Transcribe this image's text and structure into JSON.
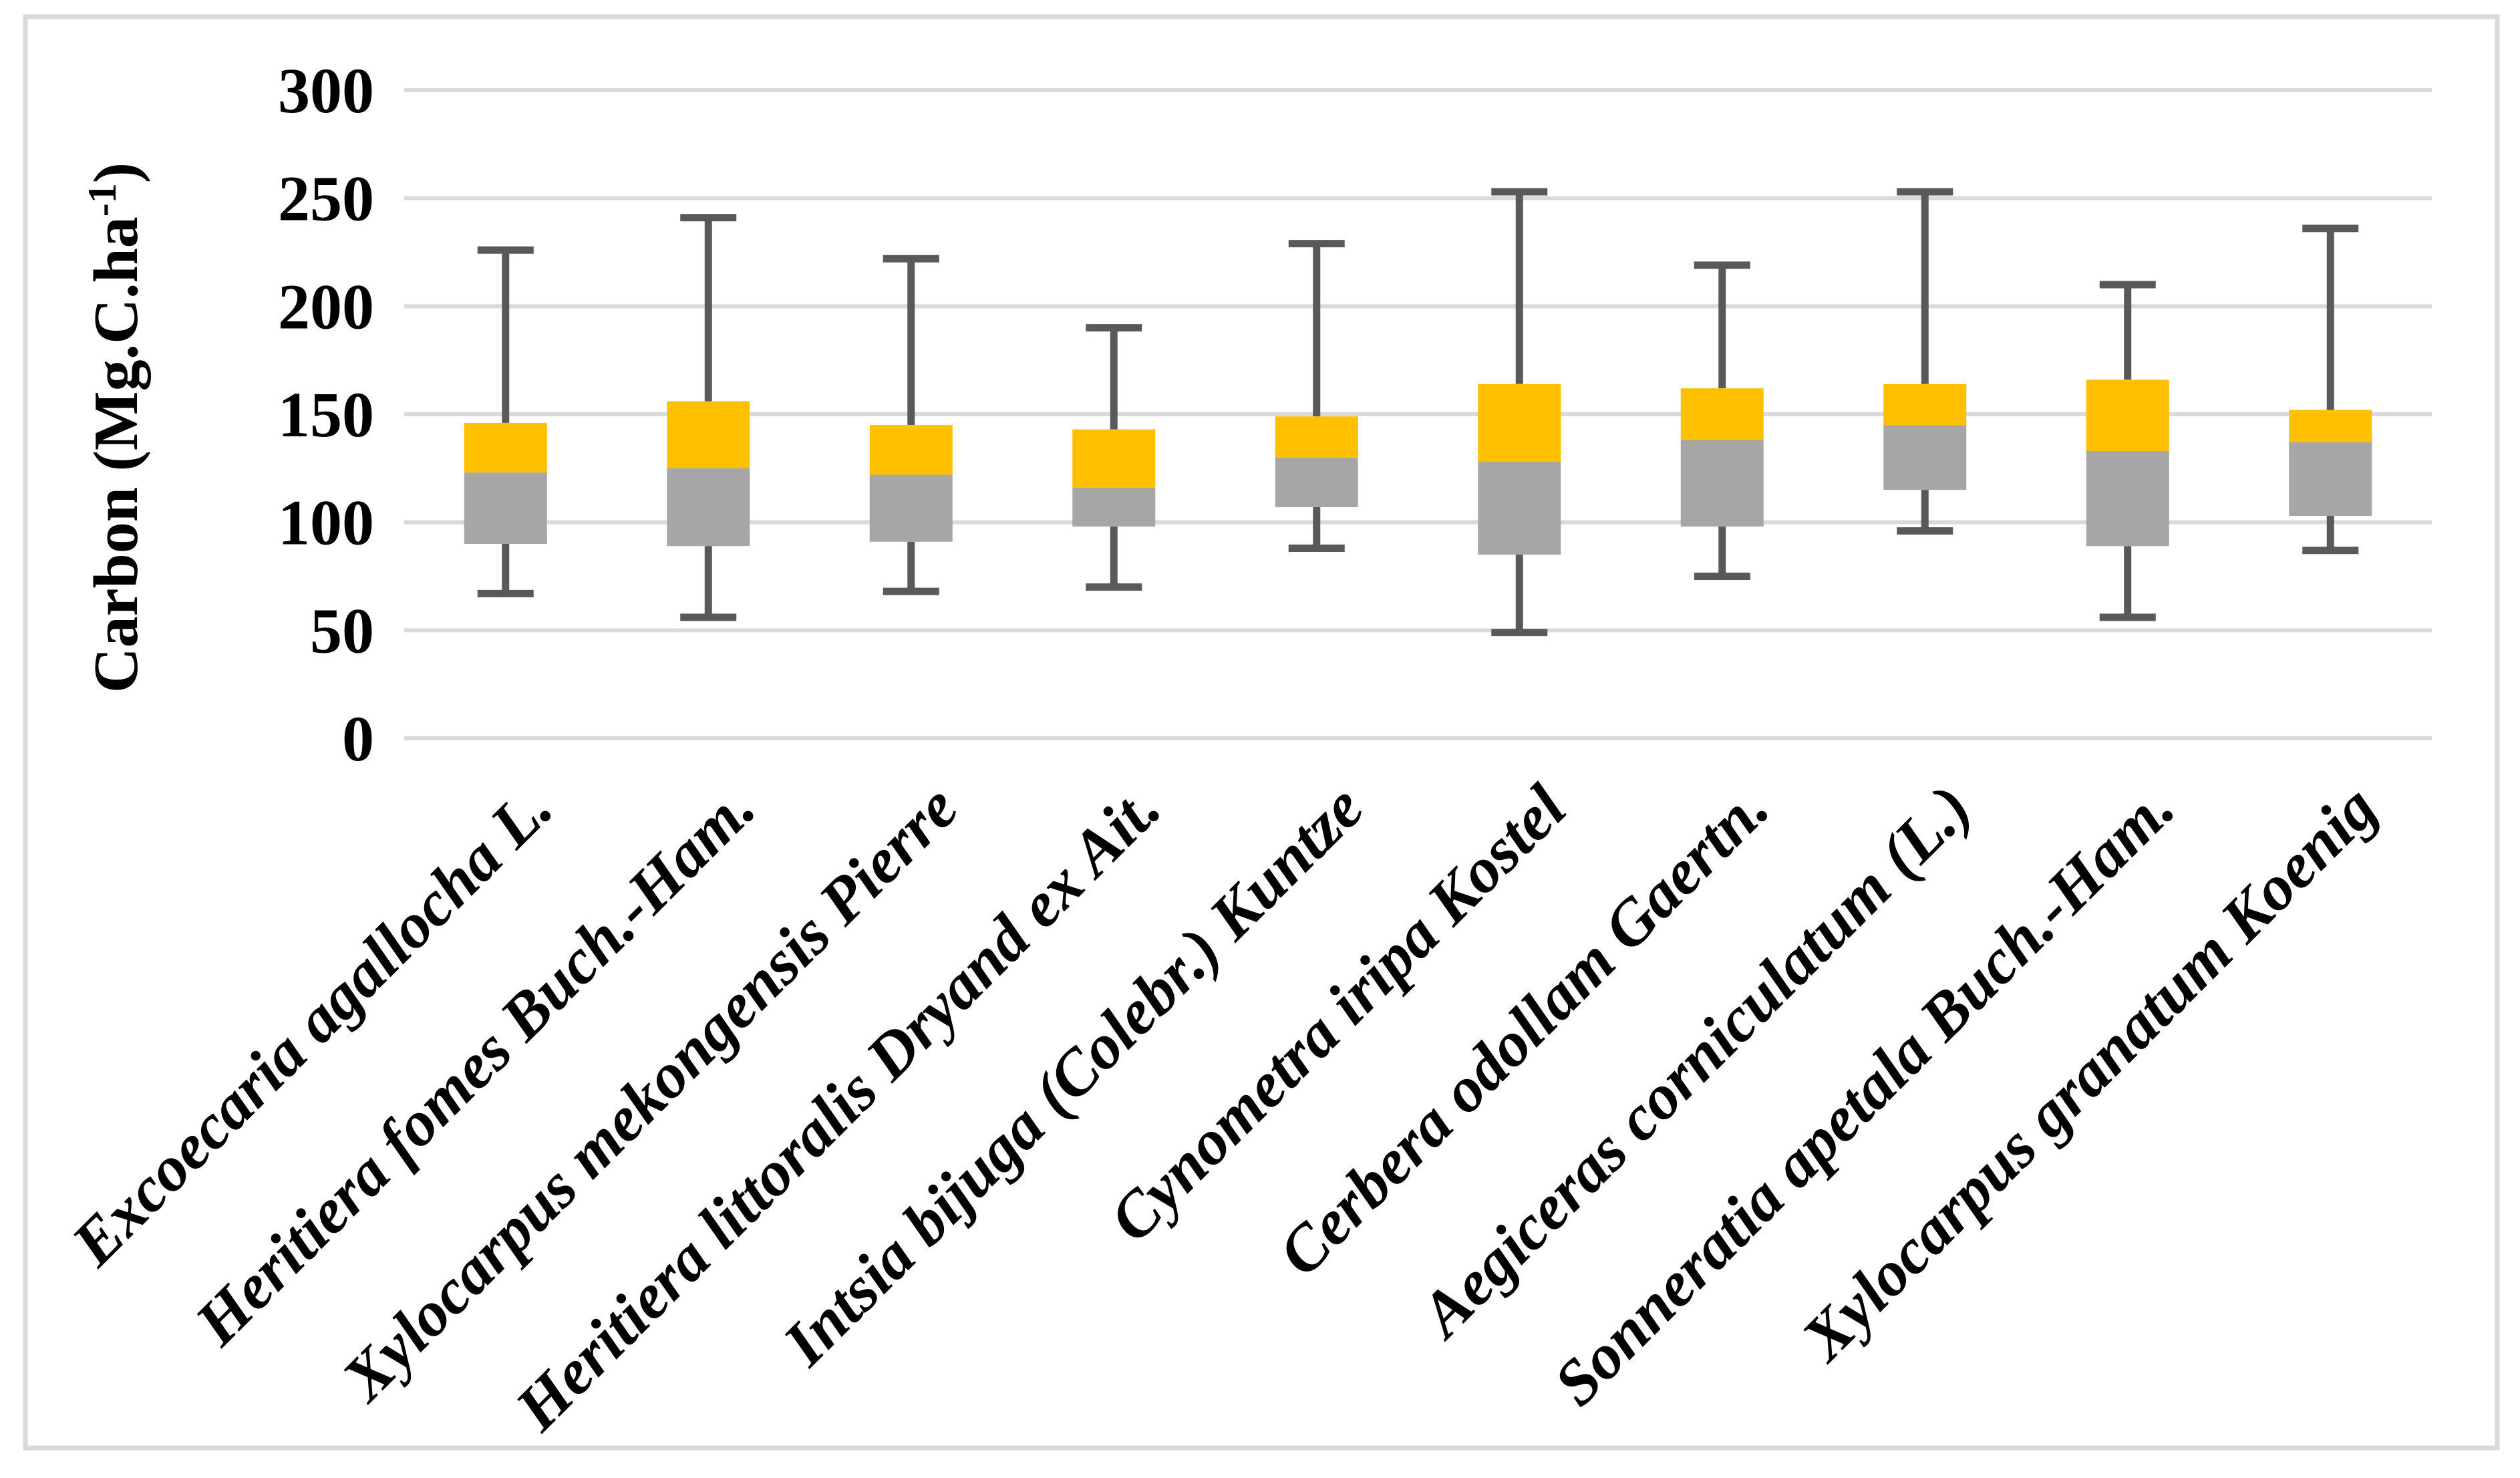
{
  "chart_data": {
    "type": "box",
    "title": "",
    "legend": "none",
    "grid": "horizontal",
    "y_axis": {
      "title_main": "Carbon (Mg.C.ha",
      "title_sup": "-1",
      "title_close": ")",
      "min": 0,
      "max": 300,
      "tick_step": 50,
      "ticks": [
        0,
        50,
        100,
        150,
        200,
        250,
        300
      ]
    },
    "categories": [
      "Excoecaria agallocha L.",
      "Heritiera fomes Buch.-Ham.",
      "Xylocarpus mekongensis Pierre",
      "Heritiera littoralis Dryand ex Ait.",
      "Intsia bijuga (Colebr.) Kuntze",
      "Cynometra iripa Kostel",
      "Cerbera odollam Gaertn.",
      "Aegiceras corniculatum (L.)",
      "Sonneratia apetala Buch.-Ham.",
      "Xylocarpus granatum Koenig"
    ],
    "boxes": [
      {
        "min": 67,
        "q1": 90,
        "median": 123,
        "q3": 146,
        "max": 226
      },
      {
        "min": 56,
        "q1": 89,
        "median": 125,
        "q3": 156,
        "max": 241
      },
      {
        "min": 68,
        "q1": 91,
        "median": 122,
        "q3": 145,
        "max": 222
      },
      {
        "min": 70,
        "q1": 98,
        "median": 116,
        "q3": 143,
        "max": 190
      },
      {
        "min": 88,
        "q1": 107,
        "median": 130,
        "q3": 149,
        "max": 229
      },
      {
        "min": 49,
        "q1": 85,
        "median": 128,
        "q3": 164,
        "max": 253
      },
      {
        "min": 75,
        "q1": 98,
        "median": 138,
        "q3": 162,
        "max": 219
      },
      {
        "min": 96,
        "q1": 115,
        "median": 145,
        "q3": 164,
        "max": 253
      },
      {
        "min": 56,
        "q1": 89,
        "median": 133,
        "q3": 166,
        "max": 210
      },
      {
        "min": 87,
        "q1": 103,
        "median": 137,
        "q3": 152,
        "max": 236
      }
    ],
    "colors": {
      "box_upper": "#FFC000",
      "box_lower": "#A6A6A6",
      "whisker": "#595959",
      "gridline": "#D9D9D9",
      "chart_border": "#D9D9D9",
      "text": "#000000"
    }
  }
}
